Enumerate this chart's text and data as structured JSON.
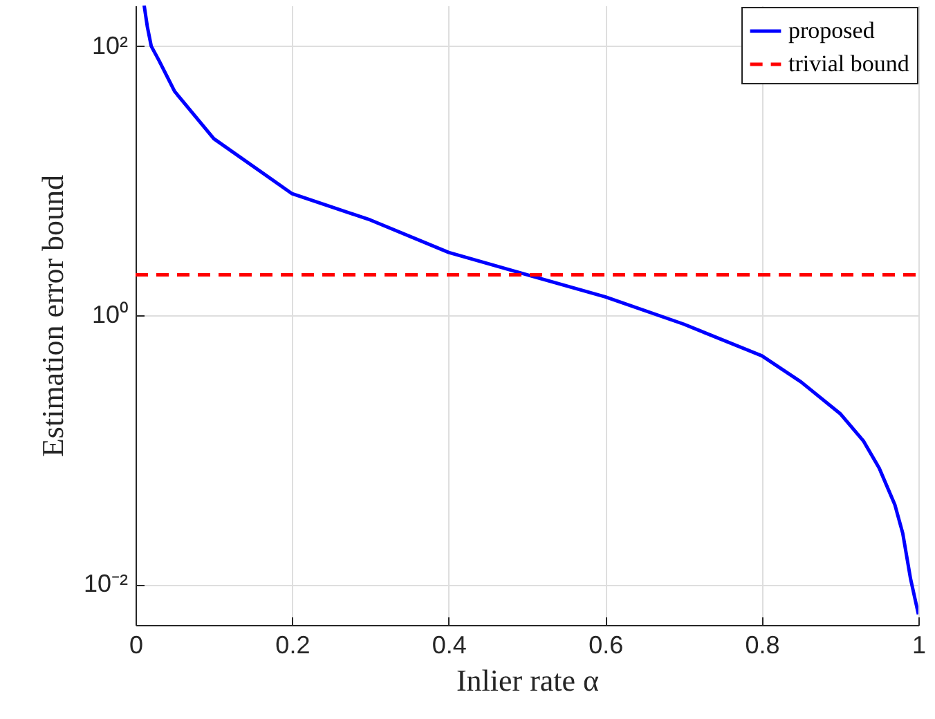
{
  "chart_data": {
    "type": "line",
    "xlabel": "Inlier rate α",
    "ylabel": "Estimation error bound",
    "log": "y",
    "grid": true,
    "legend": "top right",
    "xlim": [
      0,
      1
    ],
    "xticks": [
      0,
      0.2,
      0.4,
      0.6,
      0.8,
      1
    ],
    "ylim": [
      0.005,
      200
    ],
    "yticks": [
      {
        "value": 0.01,
        "label": "10⁻²"
      },
      {
        "value": 1,
        "label": "10⁰"
      },
      {
        "value": 100,
        "label": "10²"
      }
    ],
    "series": [
      {
        "name": "proposed",
        "color": "#0000ff",
        "line_style": "solid",
        "x": [
          0.011,
          0.015,
          0.02,
          0.03,
          0.05,
          0.1,
          0.2,
          0.3,
          0.4,
          0.5,
          0.6,
          0.7,
          0.8,
          0.85,
          0.9,
          0.93,
          0.95,
          0.97,
          0.98,
          0.99,
          1
        ],
        "values": [
          200,
          140,
          100,
          78,
          46,
          20.5,
          8,
          5.1,
          2.93,
          2,
          1.37,
          0.86,
          0.5,
          0.32,
          0.186,
          0.116,
          0.073,
          0.039,
          0.024,
          0.011,
          0.006
        ]
      },
      {
        "name": "trivial bound",
        "color": "#ff0000",
        "line_style": "dashed",
        "x": [
          0,
          1
        ],
        "values": [
          2,
          2
        ]
      }
    ]
  }
}
